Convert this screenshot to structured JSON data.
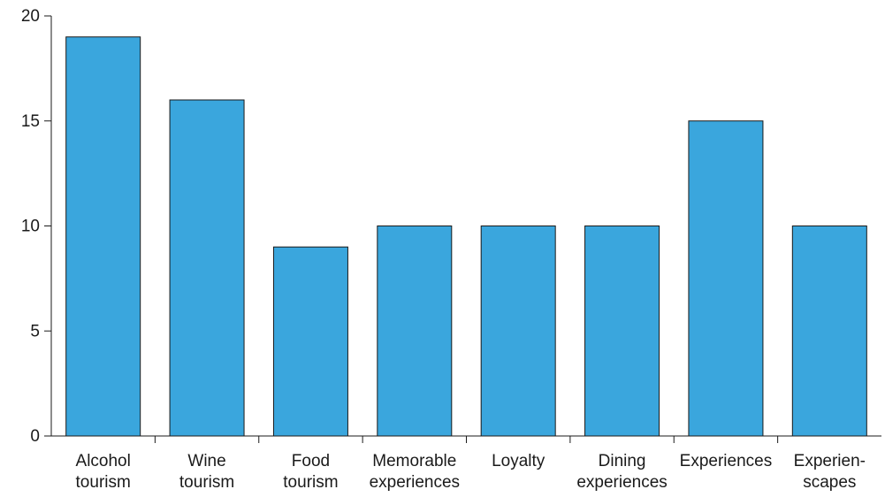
{
  "chart_data": {
    "type": "bar",
    "title": "",
    "xlabel": "",
    "ylabel": "",
    "ylim": [
      0,
      20
    ],
    "yticks": [
      0,
      5,
      10,
      15,
      20
    ],
    "grid": false,
    "bar_color": "#3aa6dd",
    "categories": [
      [
        "Alcohol",
        "tourism"
      ],
      [
        "Wine",
        "tourism"
      ],
      [
        "Food",
        "tourism"
      ],
      [
        "Memorable",
        "experiences"
      ],
      [
        "Loyalty"
      ],
      [
        "Dining",
        "experiences"
      ],
      [
        "Experiences"
      ],
      [
        "Experien-",
        "scapes"
      ]
    ],
    "values": [
      19,
      16,
      9,
      10,
      10,
      10,
      15,
      10
    ]
  }
}
